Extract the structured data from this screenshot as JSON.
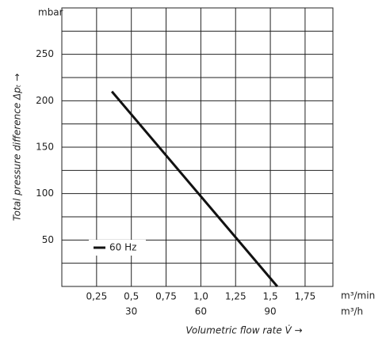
{
  "chart_data": {
    "type": "line",
    "y_unit": "mbar",
    "y_label": "Total pressure difference Δpₜ →",
    "x_label": "Volumetric flow rate V̇ →",
    "x_unit": "m³/min",
    "x2_unit": "m³/h",
    "xlim": [
      0,
      1.95
    ],
    "ylim": [
      0,
      300
    ],
    "xticks": [
      {
        "value": 0.25,
        "label": "0,25"
      },
      {
        "value": 0.5,
        "label": "0,5"
      },
      {
        "value": 0.75,
        "label": "0,75"
      },
      {
        "value": 1.0,
        "label": "1,0"
      },
      {
        "value": 1.25,
        "label": "1,25"
      },
      {
        "value": 1.5,
        "label": "1,5"
      },
      {
        "value": 1.75,
        "label": "1,75"
      }
    ],
    "x2ticks": [
      {
        "value": 0.5,
        "label": "30"
      },
      {
        "value": 1.0,
        "label": "60"
      },
      {
        "value": 1.5,
        "label": "90"
      }
    ],
    "yticks": [
      50,
      100,
      150,
      200,
      250
    ],
    "y_grid": [
      25,
      50,
      75,
      100,
      125,
      150,
      175,
      200,
      225,
      250,
      275
    ],
    "grid": true,
    "series": [
      {
        "name": "60 Hz",
        "color": "#111111",
        "x": [
          0.36,
          1.55
        ],
        "values": [
          210,
          0
        ]
      }
    ]
  }
}
